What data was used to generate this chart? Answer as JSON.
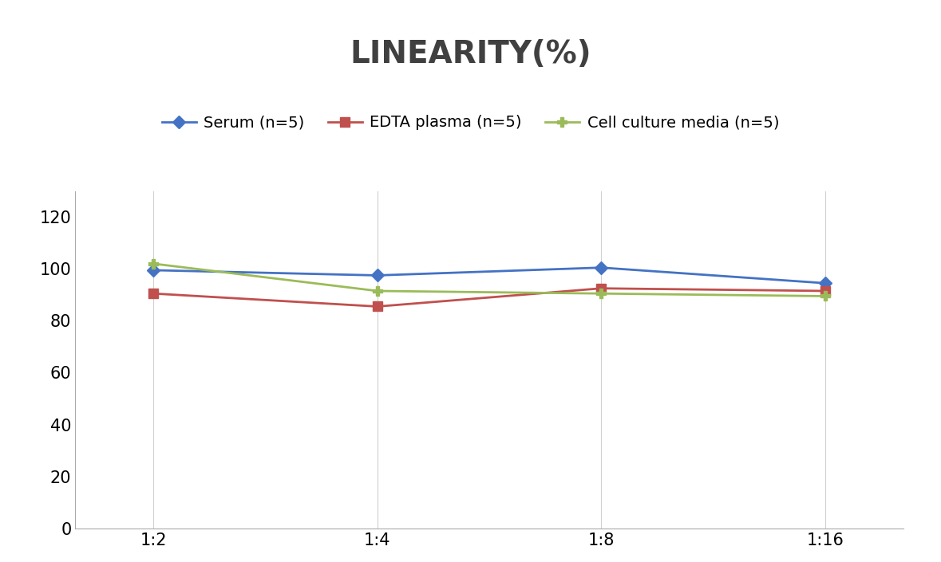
{
  "title": "LINEARITY(%)",
  "title_fontsize": 28,
  "title_fontweight": "bold",
  "title_color": "#404040",
  "x_labels": [
    "1:2",
    "1:4",
    "1:8",
    "1:16"
  ],
  "x_positions": [
    0,
    1,
    2,
    3
  ],
  "series": [
    {
      "label": "Serum (n=5)",
      "values": [
        99.5,
        97.5,
        100.5,
        94.5
      ],
      "color": "#4472C4",
      "marker": "D",
      "markersize": 8,
      "linewidth": 2
    },
    {
      "label": "EDTA plasma (n=5)",
      "values": [
        90.5,
        85.5,
        92.5,
        91.5
      ],
      "color": "#C0504D",
      "marker": "s",
      "markersize": 8,
      "linewidth": 2
    },
    {
      "label": "Cell culture media (n=5)",
      "values": [
        102.0,
        91.5,
        90.5,
        89.5
      ],
      "color": "#9BBB59",
      "marker": "P",
      "markersize": 9,
      "linewidth": 2
    }
  ],
  "ylim": [
    0,
    130
  ],
  "yticks": [
    0,
    20,
    40,
    60,
    80,
    100,
    120
  ],
  "grid_color": "#d0d0d0",
  "background_color": "#ffffff",
  "legend_fontsize": 14,
  "tick_fontsize": 15
}
